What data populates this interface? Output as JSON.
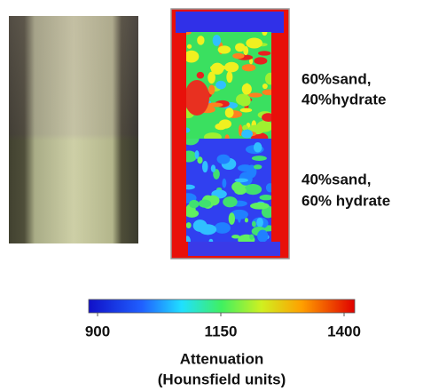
{
  "upper_label": [
    "60%sand,",
    "40%hydrate"
  ],
  "lower_label": [
    "40%sand,",
    "60% hydrate"
  ],
  "colorbar": {
    "min": 900,
    "max": 1400,
    "ticks": [
      900,
      1150,
      1400
    ],
    "title": [
      "Attenuation",
      "(Hounsfield units)"
    ]
  }
}
